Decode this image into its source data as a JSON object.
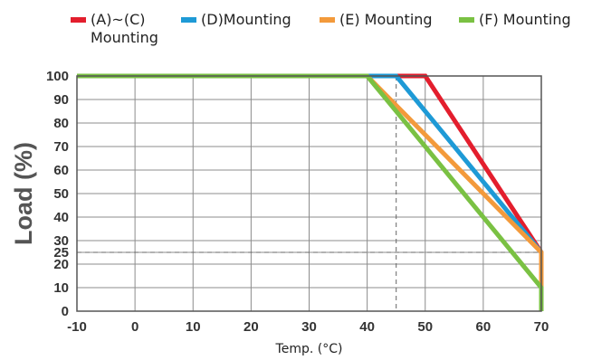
{
  "chart_data": {
    "type": "line",
    "xlabel": "Temp. (°C)",
    "ylabel": "Load (%)",
    "xlim": [
      -10,
      70
    ],
    "ylim": [
      0,
      100
    ],
    "x_ticks": [
      "-10",
      "0",
      "10",
      "20",
      "30",
      "40",
      "50",
      "60",
      "70"
    ],
    "y_ticks": [
      "0",
      "10",
      "20",
      "25",
      "30",
      "40",
      "50",
      "60",
      "70",
      "80",
      "90",
      "100"
    ],
    "grid": true,
    "legend_position": "top",
    "reference_lines": [
      {
        "axis": "x",
        "value": 45,
        "style": "dashed"
      },
      {
        "axis": "y",
        "value": 25,
        "style": "dashed"
      }
    ],
    "series": [
      {
        "name": "(A)~(C) Mounting",
        "legend_lines": [
          "(A)~(C)",
          "Mounting"
        ],
        "color": "#e31e2d",
        "x": [
          -10,
          50,
          70,
          70
        ],
        "y": [
          100,
          100,
          25,
          0
        ]
      },
      {
        "name": "(D)Mounting",
        "legend_lines": [
          "(D)Mounting"
        ],
        "color": "#1e9ad6",
        "x": [
          -10,
          45,
          70,
          70
        ],
        "y": [
          100,
          100,
          25,
          0
        ]
      },
      {
        "name": "(E) Mounting",
        "legend_lines": [
          "(E) Mounting"
        ],
        "color": "#f39a3b",
        "x": [
          -10,
          40,
          70,
          70
        ],
        "y": [
          100,
          100,
          25,
          0
        ]
      },
      {
        "name": "(F) Mounting",
        "legend_lines": [
          "(F) Mounting"
        ],
        "color": "#7ac143",
        "x": [
          -10,
          40,
          70,
          70
        ],
        "y": [
          100,
          100,
          10,
          0
        ]
      }
    ]
  }
}
